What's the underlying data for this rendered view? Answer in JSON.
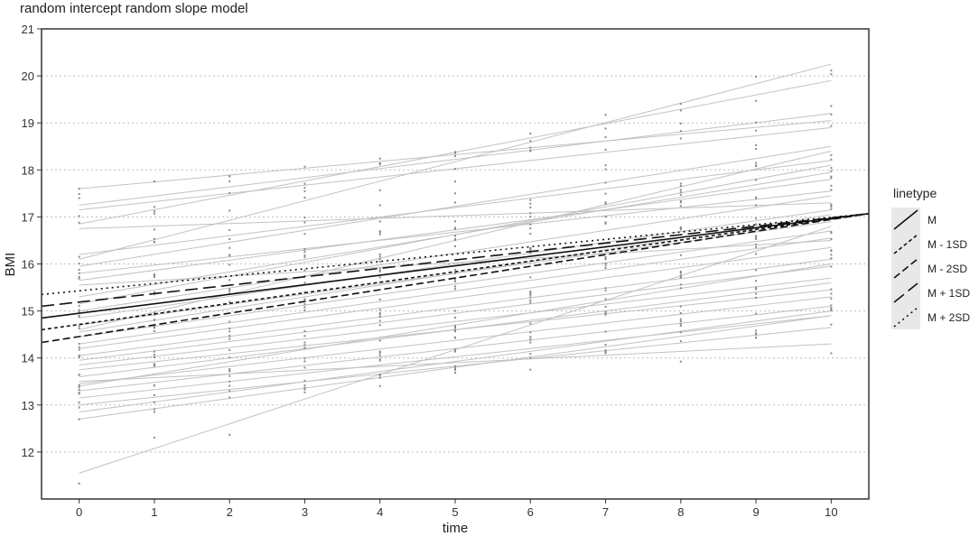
{
  "chart_data": {
    "type": "line",
    "title": "random intercept random slope model",
    "xlabel": "time",
    "ylabel": "BMI",
    "xlim": [
      -0.5,
      10.5
    ],
    "ylim": [
      11,
      21
    ],
    "x_ticks": [
      0,
      1,
      2,
      3,
      4,
      5,
      6,
      7,
      8,
      9,
      10
    ],
    "y_ticks": [
      12,
      13,
      14,
      15,
      16,
      17,
      18,
      19,
      20,
      21
    ],
    "grid": "horizontal dotted",
    "legend": {
      "title": "linetype",
      "position": "right",
      "entries": [
        {
          "label": "M",
          "dash": "solid"
        },
        {
          "label": "M - 1SD",
          "dash": "short-dash"
        },
        {
          "label": "M - 2SD",
          "dash": "medium-dash"
        },
        {
          "label": "M + 1SD",
          "dash": "long-dash"
        },
        {
          "label": "M + 2SD",
          "dash": "dotted"
        }
      ]
    },
    "series": [
      {
        "name": "M",
        "x": [
          -0.5,
          10.5
        ],
        "y": [
          14.85,
          17.07
        ],
        "dash": "solid"
      },
      {
        "name": "M - 1SD",
        "x": [
          -0.5,
          10.5
        ],
        "y": [
          14.6,
          17.07
        ],
        "dash": "short-dash"
      },
      {
        "name": "M - 2SD",
        "x": [
          -0.5,
          10.5
        ],
        "y": [
          14.33,
          17.07
        ],
        "dash": "medium-dash"
      },
      {
        "name": "M + 1SD",
        "x": [
          -0.5,
          10.5
        ],
        "y": [
          15.1,
          17.07
        ],
        "dash": "long-dash"
      },
      {
        "name": "M + 2SD",
        "x": [
          -0.5,
          10.5
        ],
        "y": [
          15.35,
          17.07
        ],
        "dash": "dotted"
      }
    ],
    "individual_lines": [
      [
        17.6,
        19.05
      ],
      [
        17.25,
        19.2
      ],
      [
        17.15,
        18.9
      ],
      [
        16.85,
        19.9
      ],
      [
        16.1,
        20.25
      ],
      [
        15.95,
        18.5
      ],
      [
        16.2,
        18.2
      ],
      [
        15.8,
        17.55
      ],
      [
        16.75,
        17.3
      ],
      [
        15.65,
        17.8
      ],
      [
        15.3,
        17.95
      ],
      [
        15.15,
        18.1
      ],
      [
        15.0,
        17.45
      ],
      [
        14.85,
        17.15
      ],
      [
        14.7,
        16.9
      ],
      [
        14.55,
        17.05
      ],
      [
        14.45,
        16.7
      ],
      [
        14.3,
        16.55
      ],
      [
        14.2,
        16.35
      ],
      [
        14.05,
        16.1
      ],
      [
        13.95,
        15.95
      ],
      [
        13.85,
        15.7
      ],
      [
        13.75,
        15.45
      ],
      [
        13.6,
        15.6
      ],
      [
        13.45,
        15.3
      ],
      [
        13.3,
        15.1
      ],
      [
        13.15,
        14.9
      ],
      [
        12.85,
        15.0
      ],
      [
        13.0,
        14.65
      ],
      [
        13.5,
        14.3
      ],
      [
        11.55,
        16.8
      ],
      [
        14.6,
        18.4
      ],
      [
        15.55,
        16.5
      ],
      [
        13.4,
        16.0
      ],
      [
        12.7,
        14.9
      ]
    ]
  }
}
